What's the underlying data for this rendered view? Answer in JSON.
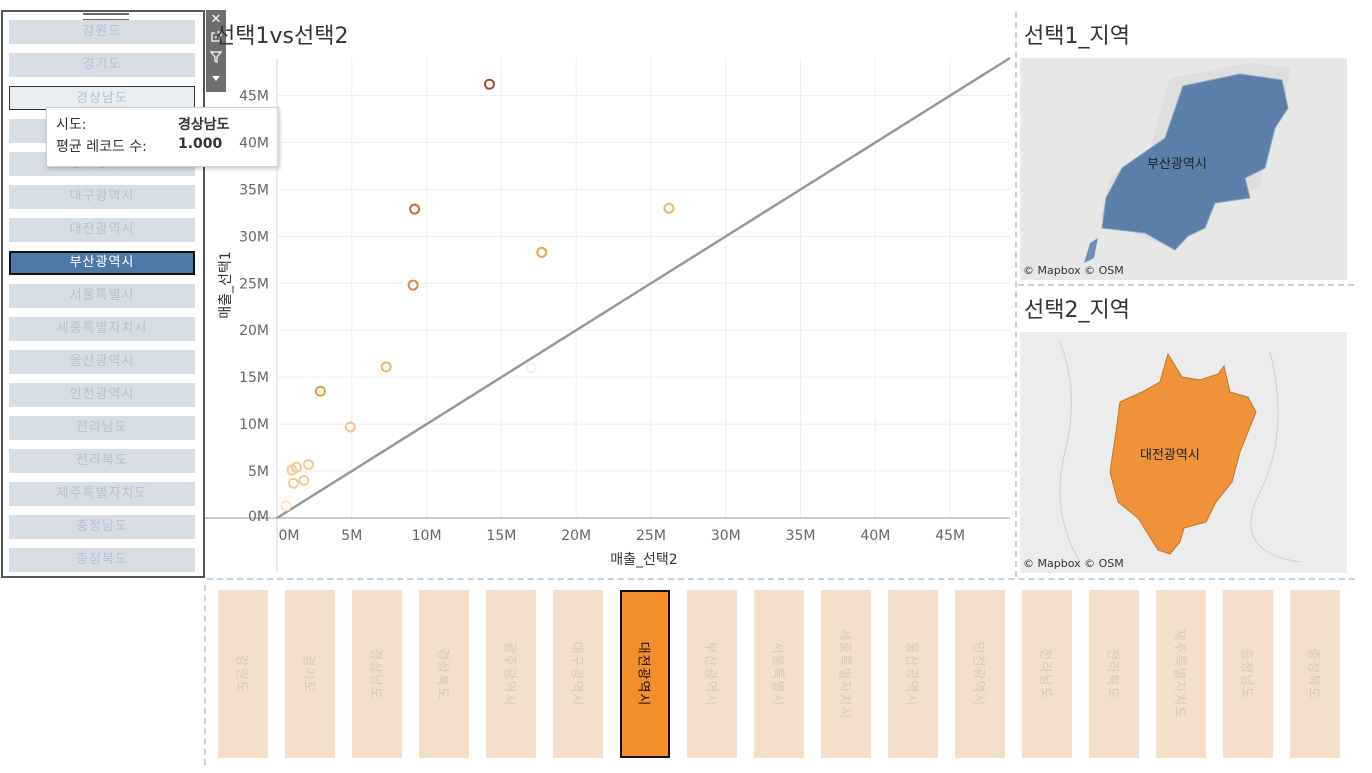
{
  "left_filter": {
    "items": [
      "강원도",
      "경기도",
      "경상남도",
      "경상북도",
      "광주광역시",
      "대구광역시",
      "대전광역시",
      "부산광역시",
      "서울특별시",
      "세종특별자치시",
      "울산광역시",
      "인천광역시",
      "전라남도",
      "전라북도",
      "제주특별자치도",
      "충청남도",
      "충청북도"
    ],
    "selected": "부산광역시",
    "hovered": "경상남도",
    "toolbar_icons": [
      "close-icon",
      "open-new-icon",
      "filter-icon",
      "dropdown-arrow-icon"
    ]
  },
  "tooltip": {
    "rows": [
      {
        "label": "시도:",
        "value": "경상남도"
      },
      {
        "label": "평균 레코드 수:",
        "value": "1.000"
      }
    ]
  },
  "scatter": {
    "title": "선택1vs선택2",
    "xlabel": "매출_선택2",
    "ylabel": "매출_선택1"
  },
  "map1": {
    "title": "선택1_지역",
    "region": "부산광역시",
    "credit": "© Mapbox © OSM",
    "fill": "#5b7fa8"
  },
  "map2": {
    "title": "선택2_지역",
    "region": "대전광역시",
    "credit": "© Mapbox © OSM",
    "fill": "#f0923a"
  },
  "bottom_selector": {
    "items": [
      "강원도",
      "경기도",
      "경상남도",
      "경상북도",
      "광주광역시",
      "대구광역시",
      "대전광역시",
      "부산광역시",
      "서울특별시",
      "세종특별자치시",
      "울산광역시",
      "인천광역시",
      "전라남도",
      "전라북도",
      "제주특별자치도",
      "충청남도",
      "충청북도"
    ],
    "selected": "대전광역시"
  },
  "chart_data": {
    "type": "scatter",
    "title": "선택1vs선택2",
    "xlabel": "매출_선택2",
    "ylabel": "매출_선택1",
    "xlim": [
      0,
      49000000
    ],
    "ylim": [
      0,
      49000000
    ],
    "x_ticks": [
      "0M",
      "5M",
      "10M",
      "15M",
      "20M",
      "25M",
      "30M",
      "35M",
      "40M",
      "45M"
    ],
    "y_ticks": [
      "0M",
      "5M",
      "10M",
      "15M",
      "20M",
      "25M",
      "30M",
      "35M",
      "40M",
      "45M"
    ],
    "reference_line": "y = x",
    "points": [
      {
        "x": 14200000,
        "y": 46200000,
        "color": "#b5462e"
      },
      {
        "x": 9200000,
        "y": 32900000,
        "color": "#c9663a"
      },
      {
        "x": 26200000,
        "y": 33000000,
        "color": "#f3b36a"
      },
      {
        "x": 17700000,
        "y": 28300000,
        "color": "#f0a048"
      },
      {
        "x": 9100000,
        "y": 24800000,
        "color": "#e5843a"
      },
      {
        "x": 7300000,
        "y": 16100000,
        "color": "#f3b36a"
      },
      {
        "x": 2900000,
        "y": 13500000,
        "color": "#eb9a45"
      },
      {
        "x": 4900000,
        "y": 9700000,
        "color": "#f6c283"
      },
      {
        "x": 1300000,
        "y": 5400000,
        "color": "#f6c994"
      },
      {
        "x": 2100000,
        "y": 5700000,
        "color": "#f6c994"
      },
      {
        "x": 1000000,
        "y": 5100000,
        "color": "#f6c994"
      },
      {
        "x": 1800000,
        "y": 4000000,
        "color": "#f6c994"
      },
      {
        "x": 1100000,
        "y": 3700000,
        "color": "#f6c994"
      },
      {
        "x": 600000,
        "y": 1300000,
        "color": "#fde6cc"
      },
      {
        "x": 17000000,
        "y": 16000000,
        "color": "#f2f2f2"
      }
    ],
    "grid": true
  }
}
